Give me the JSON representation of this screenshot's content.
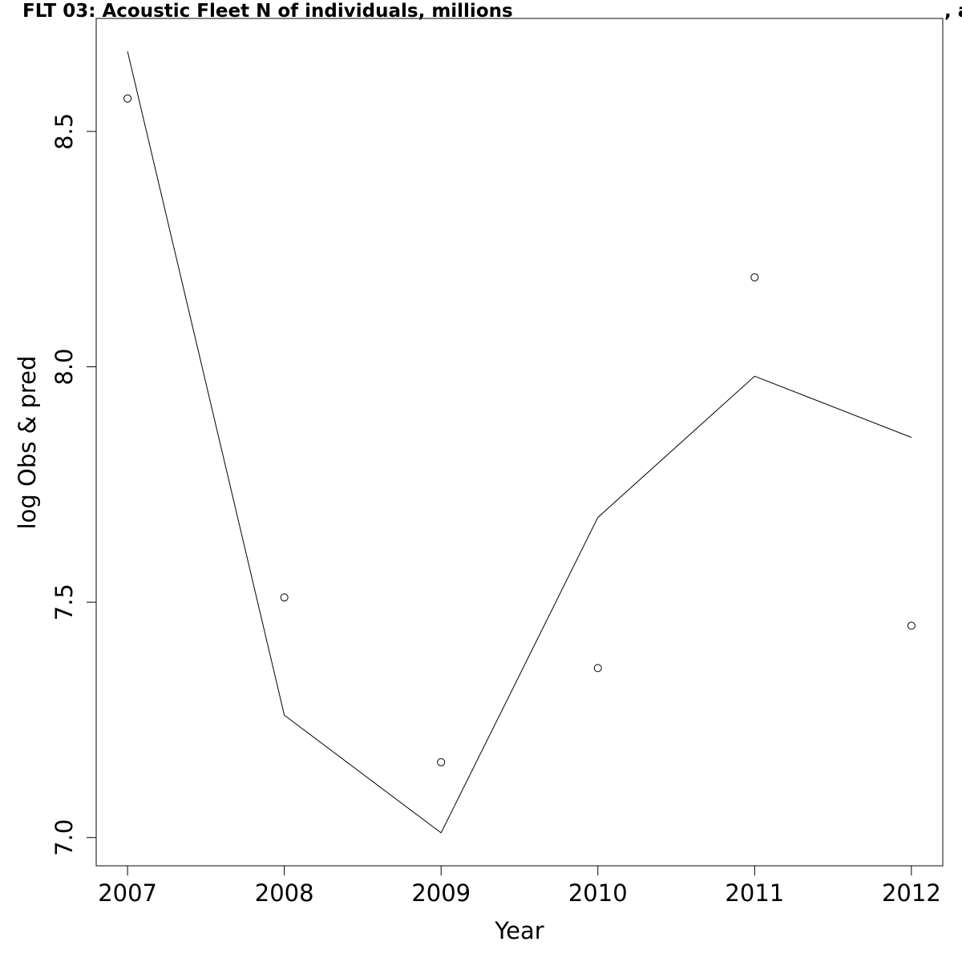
{
  "chart_data": {
    "type": "line",
    "title": "FLT 03: Acoustic Fleet   N of individuals, millions",
    "title_suffix": ", a",
    "xlabel": "Year",
    "ylabel": "log Obs & pred",
    "x": [
      2007,
      2008,
      2009,
      2010,
      2011,
      2012
    ],
    "x_tick_labels": [
      "2007",
      "2008",
      "2009",
      "2010",
      "2011",
      "2012"
    ],
    "y_tick_labels": [
      "7.0",
      "7.5",
      "8.0",
      "8.5"
    ],
    "y_ticks": [
      7.0,
      7.5,
      8.0,
      8.5
    ],
    "xlim": [
      2006.8,
      2012.2
    ],
    "ylim": [
      6.94,
      8.74
    ],
    "series": [
      {
        "kind": "observed",
        "marker": "open-circle",
        "values": [
          8.57,
          7.51,
          7.16,
          7.36,
          8.19,
          7.45
        ]
      },
      {
        "kind": "predicted",
        "marker": "line",
        "values": [
          8.67,
          7.26,
          7.01,
          7.68,
          7.98,
          7.85
        ]
      }
    ],
    "grid": false,
    "legend": "none",
    "colors": {
      "line": "#000000",
      "points": "#000000",
      "frame": "#333333"
    }
  }
}
